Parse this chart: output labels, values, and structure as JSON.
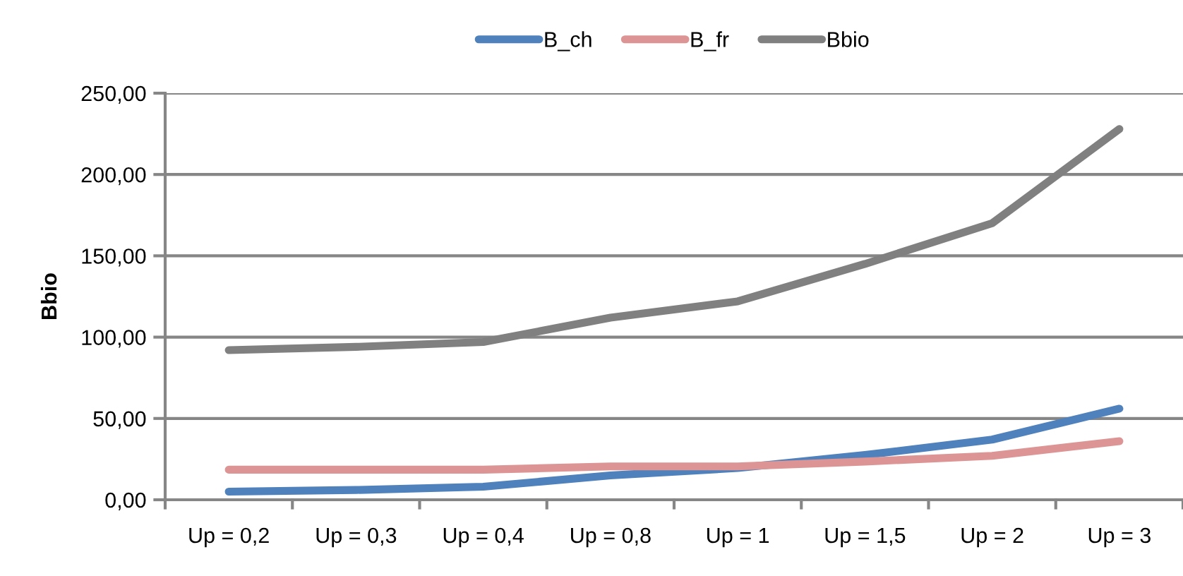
{
  "chart_data": {
    "type": "line",
    "ylabel": "Bbio",
    "categories": [
      "Up = 0,2",
      "Up = 0,3",
      "Up = 0,4",
      "Up = 0,8",
      "Up = 1",
      "Up = 1,5",
      "Up = 2",
      "Up = 3"
    ],
    "series": [
      {
        "name": "B_ch",
        "color": "#4f81bd",
        "values": [
          5,
          6,
          8,
          15,
          19.5,
          27.5,
          37,
          56
        ]
      },
      {
        "name": "B_fr",
        "color": "#dc9594",
        "values": [
          18.5,
          18.5,
          18.5,
          20.5,
          20.5,
          23.5,
          27,
          36
        ]
      },
      {
        "name": "Bbio",
        "color": "#808080",
        "values": [
          92,
          94,
          97,
          112,
          122,
          145,
          170,
          228
        ]
      }
    ],
    "ylim": [
      0,
      250
    ],
    "yticks": [
      {
        "value": 0,
        "label": "0,00"
      },
      {
        "value": 50,
        "label": "50,00"
      },
      {
        "value": 100,
        "label": "100,00"
      },
      {
        "value": 150,
        "label": "150,00"
      },
      {
        "value": 200,
        "label": "200,00"
      },
      {
        "value": 250,
        "label": "250,00"
      }
    ],
    "grid": "y",
    "legend": "top",
    "marker": "none",
    "line_style": "solid"
  }
}
